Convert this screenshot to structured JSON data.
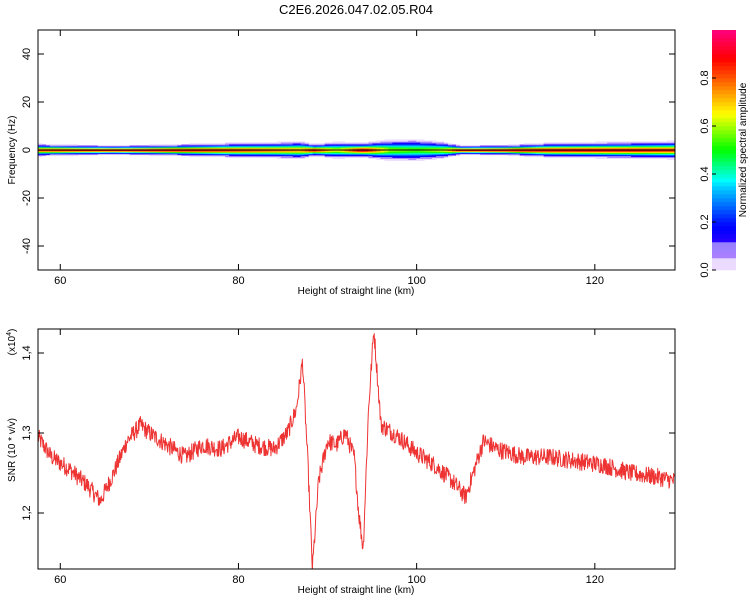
{
  "title": "C2E6.2026.047.02.05.R04",
  "chart_data": [
    {
      "type": "heatmap",
      "xlabel": "Height of straight line (km)",
      "ylabel": "Frequency (Hz)",
      "xlim": [
        57.5,
        129
      ],
      "ylim": [
        -50,
        50
      ],
      "xticks": [
        60,
        80,
        100,
        120
      ],
      "yticks": [
        40,
        20,
        0,
        -20,
        -40
      ],
      "colorbar": {
        "label": "Normalized spectral amplitude",
        "range": [
          0,
          1
        ],
        "ticks": [
          0.0,
          0.2,
          0.4,
          0.6,
          0.8
        ]
      },
      "band_center_hz": 0,
      "band_profile": [
        {
          "x": 57.5,
          "halfwidth": 2.2,
          "peak": 0.85
        },
        {
          "x": 62,
          "halfwidth": 1.8,
          "peak": 0.9
        },
        {
          "x": 66,
          "halfwidth": 1.6,
          "peak": 0.95
        },
        {
          "x": 70,
          "halfwidth": 1.8,
          "peak": 0.95
        },
        {
          "x": 75,
          "halfwidth": 2.2,
          "peak": 0.9
        },
        {
          "x": 80,
          "halfwidth": 2.6,
          "peak": 0.85
        },
        {
          "x": 84,
          "halfwidth": 2.8,
          "peak": 0.8
        },
        {
          "x": 87,
          "halfwidth": 3.2,
          "peak": 0.75
        },
        {
          "x": 88.5,
          "halfwidth": 2.2,
          "peak": 0.9
        },
        {
          "x": 91,
          "halfwidth": 3.0,
          "peak": 0.65
        },
        {
          "x": 94,
          "halfwidth": 2.6,
          "peak": 0.95
        },
        {
          "x": 97,
          "halfwidth": 3.8,
          "peak": 0.6
        },
        {
          "x": 100,
          "halfwidth": 4.0,
          "peak": 0.55
        },
        {
          "x": 103,
          "halfwidth": 3.0,
          "peak": 0.65
        },
        {
          "x": 105,
          "halfwidth": 1.6,
          "peak": 0.95
        },
        {
          "x": 110,
          "halfwidth": 1.8,
          "peak": 0.95
        },
        {
          "x": 115,
          "halfwidth": 2.6,
          "peak": 0.9
        },
        {
          "x": 120,
          "halfwidth": 2.8,
          "peak": 0.9
        },
        {
          "x": 125,
          "halfwidth": 3.0,
          "peak": 0.88
        },
        {
          "x": 129,
          "halfwidth": 3.2,
          "peak": 0.85
        }
      ]
    },
    {
      "type": "line",
      "xlabel": "Height of straight line (km)",
      "ylabel": "SNR (10 * v/v)",
      "yscale_label": "(x10",
      "yscale_exponent": "4",
      "xlim": [
        57.5,
        129
      ],
      "ylim": [
        1.13,
        1.43
      ],
      "xticks": [
        60,
        80,
        100,
        120
      ],
      "yticks": [
        1.2,
        1.3,
        1.4
      ],
      "series": [
        {
          "color": "#ee3333",
          "x": [
            57.5,
            59,
            61,
            63,
            64.5,
            66,
            67.5,
            69,
            70,
            72,
            74,
            76,
            78,
            80,
            82,
            84,
            85.5,
            86.5,
            87.2,
            87.8,
            88.3,
            89,
            90,
            91,
            92,
            93,
            93.5,
            94,
            94.6,
            95.2,
            96,
            98,
            100,
            102,
            104,
            105.5,
            106.5,
            107.5,
            109,
            112,
            115,
            118,
            121,
            124,
            127,
            129
          ],
          "y": [
            1.295,
            1.27,
            1.255,
            1.235,
            1.215,
            1.25,
            1.29,
            1.31,
            1.3,
            1.285,
            1.27,
            1.285,
            1.28,
            1.295,
            1.285,
            1.28,
            1.3,
            1.33,
            1.39,
            1.26,
            1.13,
            1.24,
            1.29,
            1.285,
            1.3,
            1.27,
            1.2,
            1.155,
            1.33,
            1.43,
            1.31,
            1.295,
            1.275,
            1.26,
            1.24,
            1.22,
            1.255,
            1.29,
            1.28,
            1.27,
            1.27,
            1.265,
            1.26,
            1.25,
            1.245,
            1.24
          ]
        }
      ]
    }
  ]
}
